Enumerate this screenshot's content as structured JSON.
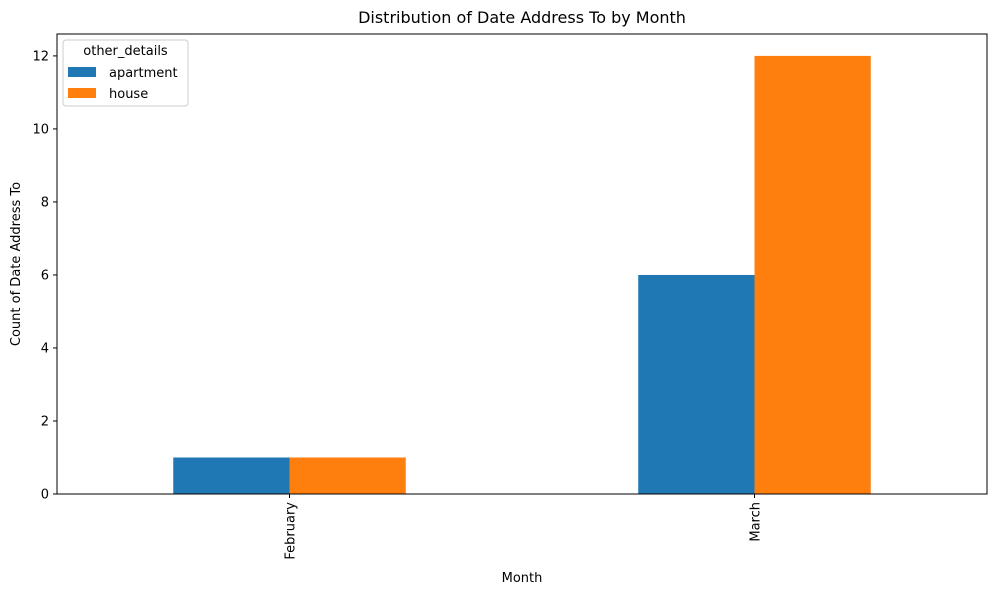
{
  "chart_data": {
    "type": "bar",
    "title": "Distribution of Date Address To by Month",
    "xlabel": "Month",
    "ylabel": "Count of Date Address To",
    "categories": [
      "February",
      "March"
    ],
    "series": [
      {
        "name": "apartment",
        "color": "#1f77b4",
        "values": [
          1,
          6
        ]
      },
      {
        "name": "house",
        "color": "#ff7f0e",
        "values": [
          1,
          12
        ]
      }
    ],
    "ylim": [
      0,
      12.6
    ],
    "yticks": [
      0,
      2,
      4,
      6,
      8,
      10,
      12
    ],
    "grid": false,
    "legend": {
      "title": "other_details",
      "placement": "top-left"
    }
  }
}
